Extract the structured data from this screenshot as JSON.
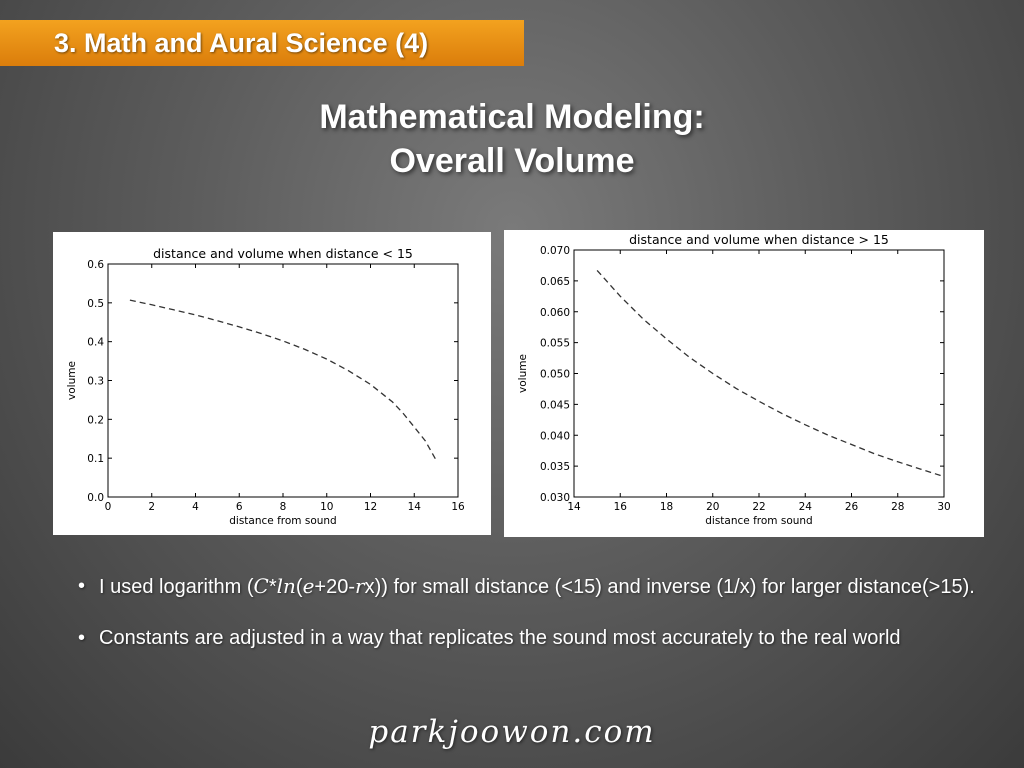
{
  "header": {
    "section_label": "3. Math and Aural Science (4)"
  },
  "slide": {
    "title_line1": "Mathematical Modeling:",
    "title_line2": "Overall Volume"
  },
  "chart_data": [
    {
      "type": "line",
      "title": "distance and volume when distance < 15",
      "xlabel": "distance from sound",
      "ylabel": "volume",
      "xlim": [
        0,
        16
      ],
      "ylim": [
        0.0,
        0.6
      ],
      "xticks": [
        0,
        2,
        4,
        6,
        8,
        10,
        12,
        14,
        16
      ],
      "yticks": [
        0.0,
        0.1,
        0.2,
        0.3,
        0.4,
        0.5,
        0.6
      ],
      "xtick_labels": [
        "0",
        "2",
        "4",
        "6",
        "8",
        "10",
        "12",
        "14",
        "16"
      ],
      "ytick_labels": [
        "0.0",
        "0.1",
        "0.2",
        "0.3",
        "0.4",
        "0.5",
        "0.6"
      ],
      "line_style": "dashed",
      "series": [
        {
          "name": "volume",
          "x": [
            1,
            2,
            3,
            4,
            5,
            6,
            7,
            8,
            9,
            10,
            11,
            12,
            13,
            13.5,
            14,
            14.5,
            15
          ],
          "y": [
            0.507,
            0.495,
            0.482,
            0.469,
            0.454,
            0.438,
            0.421,
            0.402,
            0.38,
            0.355,
            0.325,
            0.29,
            0.245,
            0.215,
            0.18,
            0.145,
            0.095
          ]
        }
      ]
    },
    {
      "type": "line",
      "title": "distance and volume when distance > 15",
      "xlabel": "distance from sound",
      "ylabel": "volume",
      "xlim": [
        14,
        30
      ],
      "ylim": [
        0.03,
        0.07
      ],
      "xticks": [
        14,
        16,
        18,
        20,
        22,
        24,
        26,
        28,
        30
      ],
      "yticks": [
        0.03,
        0.035,
        0.04,
        0.045,
        0.05,
        0.055,
        0.06,
        0.065,
        0.07
      ],
      "xtick_labels": [
        "14",
        "16",
        "18",
        "20",
        "22",
        "24",
        "26",
        "28",
        "30"
      ],
      "ytick_labels": [
        "0.030",
        "0.035",
        "0.040",
        "0.045",
        "0.050",
        "0.055",
        "0.060",
        "0.065",
        "0.070"
      ],
      "line_style": "dashed",
      "series": [
        {
          "name": "volume",
          "x": [
            15,
            16,
            17,
            18,
            19,
            20,
            21,
            22,
            23,
            24,
            25,
            26,
            27,
            28,
            29,
            30
          ],
          "y": [
            0.0667,
            0.0625,
            0.0588,
            0.0556,
            0.0526,
            0.05,
            0.0476,
            0.0455,
            0.0435,
            0.0417,
            0.04,
            0.0385,
            0.037,
            0.0357,
            0.0345,
            0.0333
          ]
        }
      ]
    }
  ],
  "bullets": [
    {
      "pre": "I used logarithm (",
      "formula_c": "C",
      "formula_star": "*",
      "formula_ln": "ln",
      "formula_open": "(",
      "formula_e": "e",
      "formula_plus": "+20-",
      "formula_r": "r",
      "post": "x)) for small distance (<15) and inverse (1/x) for larger distance(>15)."
    },
    {
      "text": "Constants are adjusted in a  way that replicates the sound most accurately to the real world"
    }
  ],
  "footer": {
    "brand": "parkjoowon.com"
  }
}
